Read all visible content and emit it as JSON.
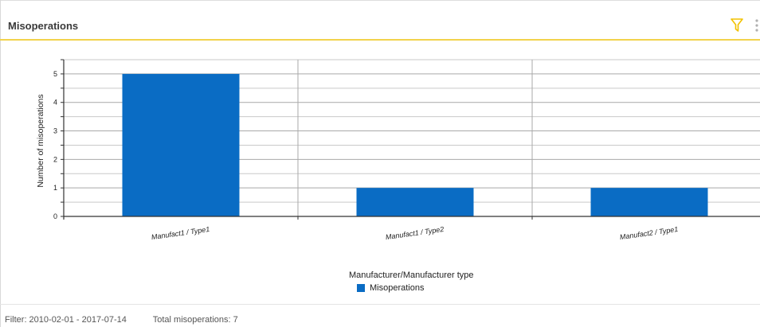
{
  "panel": {
    "title": "Misoperations"
  },
  "icons": {
    "filter": "filter-icon",
    "more": "more-vertical-icon"
  },
  "colors": {
    "bar": "#0a6cc4",
    "header_accent": "#f2d24b"
  },
  "chart_data": {
    "type": "bar",
    "categories": [
      "Manufact1 / Type1",
      "Manufact1 / Type2",
      "Manufact2 / Type1"
    ],
    "series": [
      {
        "name": "Misoperations",
        "values": [
          5,
          1,
          1
        ]
      }
    ],
    "xlabel": "Manufacturer/Manufacturer type",
    "ylabel": "Number of misoperations",
    "ylim": [
      0,
      5.5
    ],
    "yticks": [
      0,
      1,
      2,
      3,
      4,
      5
    ],
    "grid": true,
    "legend": "bottom-center"
  },
  "footer": {
    "filter": "Filter: 2010-02-01 - 2017-07-14",
    "total": "Total misoperations: 7"
  }
}
